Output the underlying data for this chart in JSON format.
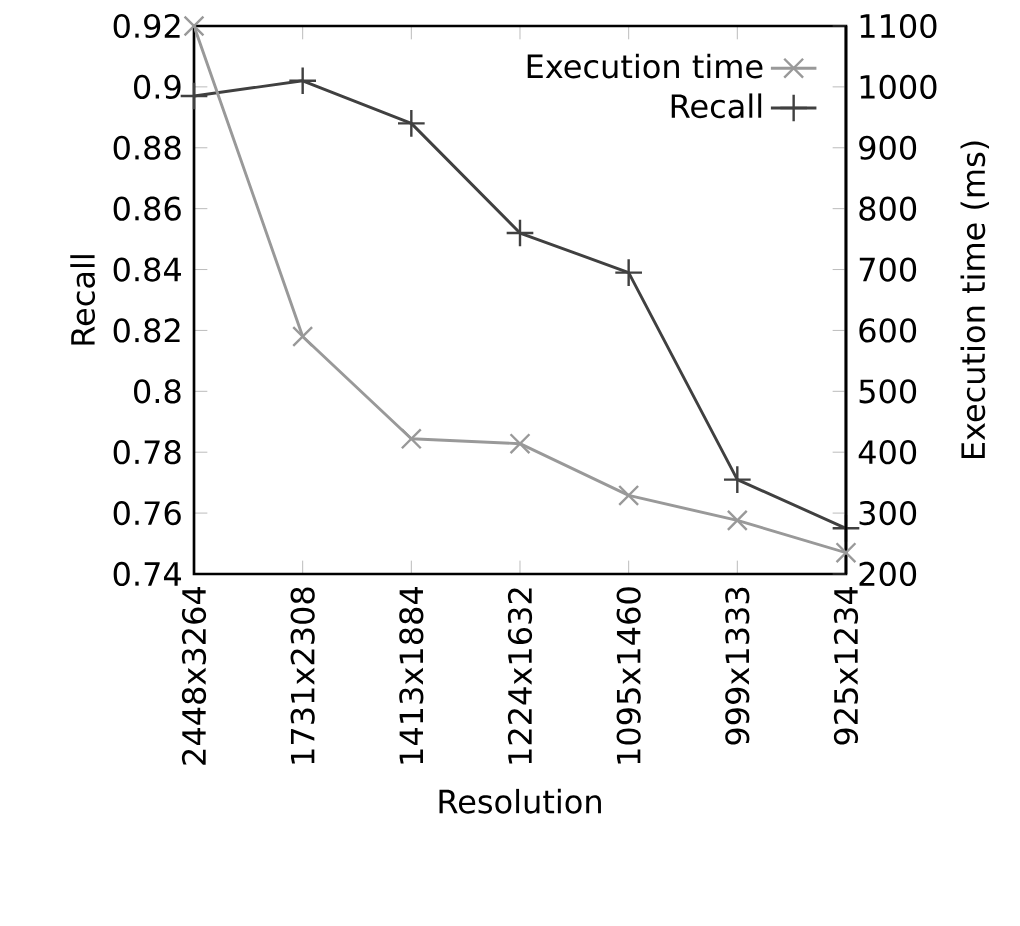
{
  "chart_data": {
    "type": "line",
    "xlabel": "Resolution",
    "ylabel": "Recall",
    "y2label": "Execution time (ms)",
    "categories": [
      "2448x3264",
      "1731x2308",
      "1413x1884",
      "1224x1632",
      "1095x1460",
      "999x1333",
      "925x1234"
    ],
    "series": [
      {
        "name": "Execution time",
        "color": "#999999",
        "axis": "y2",
        "marker": "cross",
        "values": [
          1100,
          590,
          422,
          414,
          329,
          288,
          235
        ]
      },
      {
        "name": "Recall",
        "color": "#404040",
        "marker": "plus",
        "values": [
          0.897,
          0.902,
          0.888,
          0.852,
          0.839,
          0.771,
          0.755
        ]
      }
    ],
    "ylim": [
      0.74,
      0.92
    ],
    "yticks": [
      0.74,
      0.76,
      0.78,
      0.8,
      0.82,
      0.84,
      0.86,
      0.88,
      0.9,
      0.92
    ],
    "y2lim": [
      200,
      1100
    ],
    "y2ticks": [
      200,
      300,
      400,
      500,
      600,
      700,
      800,
      900,
      1000,
      1100
    ],
    "legend": "top right",
    "grid": false,
    "line_style": "solid"
  }
}
